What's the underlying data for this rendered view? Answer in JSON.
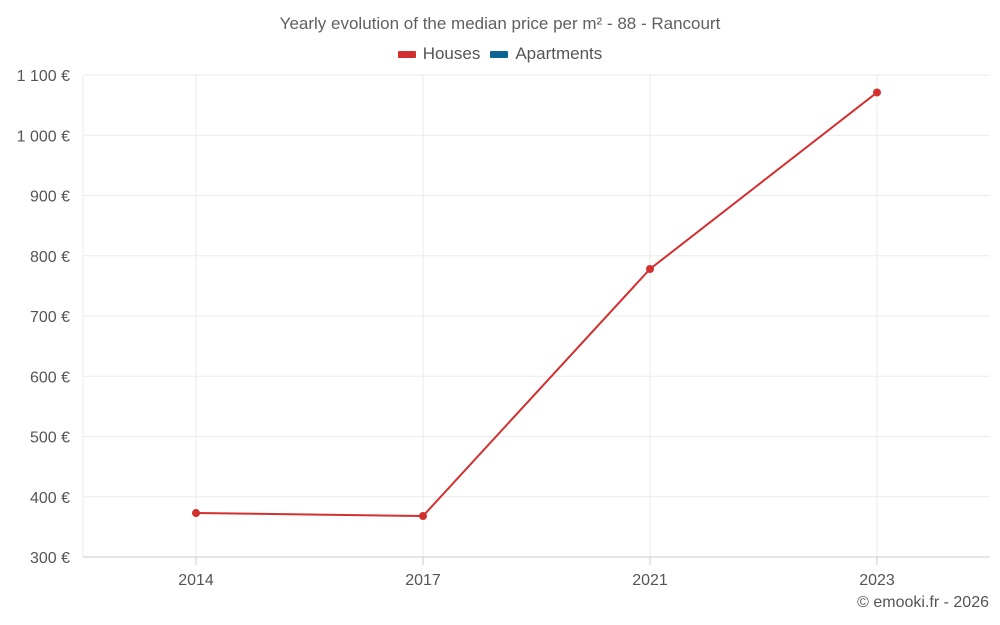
{
  "chart_data": {
    "type": "line",
    "title": "Yearly evolution of the median price per m² - 88 - Rancourt",
    "x": [
      "2014",
      "2017",
      "2021",
      "2023"
    ],
    "series": [
      {
        "name": "Houses",
        "color": "#d32f2f",
        "values": [
          373,
          368,
          778,
          1071
        ]
      },
      {
        "name": "Apartments",
        "color": "#0b6394",
        "values": [
          null,
          null,
          null,
          null
        ]
      }
    ],
    "y_ticks": [
      "300 €",
      "400 €",
      "500 €",
      "600 €",
      "700 €",
      "800 €",
      "900 €",
      "1 000 €",
      "1 100 €"
    ],
    "y_tick_values": [
      300,
      400,
      500,
      600,
      700,
      800,
      900,
      1000,
      1100
    ],
    "ylim": [
      300,
      1100
    ],
    "grid": true,
    "legend_position": "top-center"
  },
  "credit": "© emooki.fr - 2026"
}
